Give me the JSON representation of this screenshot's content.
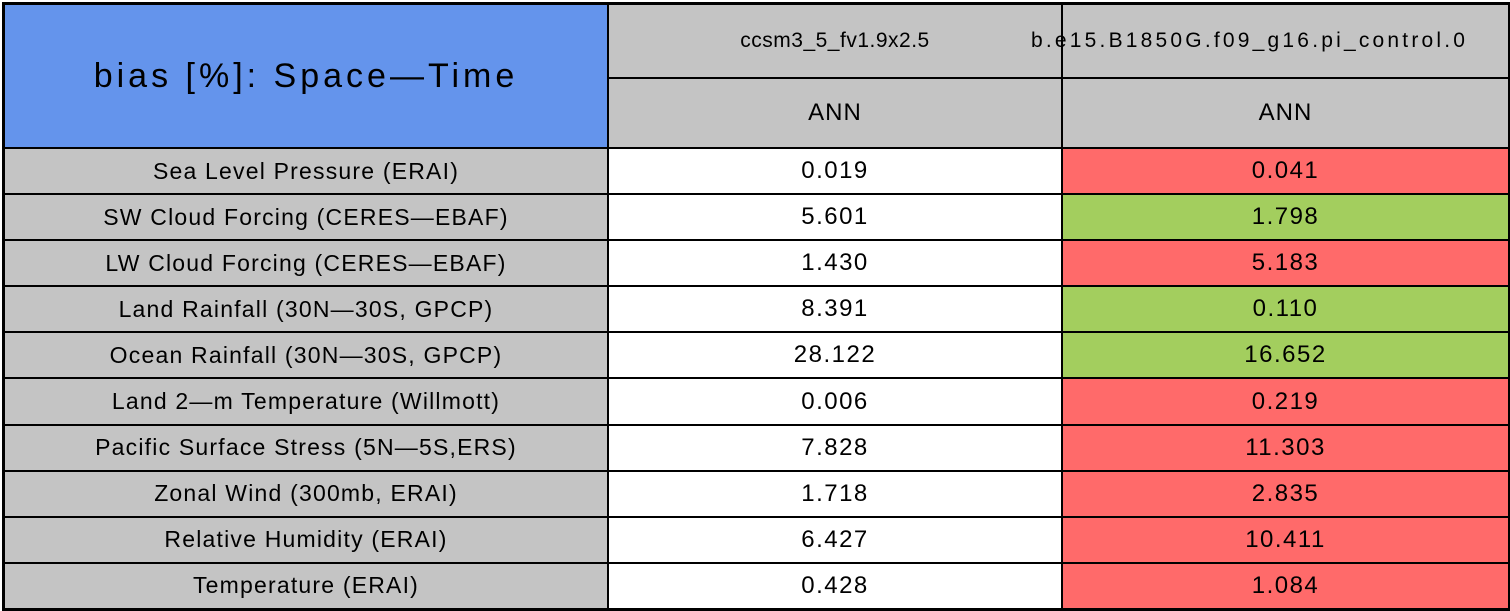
{
  "table": {
    "title": "bias [%]: Space—Time",
    "model_columns": [
      {
        "name": "ccsm3_5_fv1.9x2.5",
        "season": "ANN"
      },
      {
        "name": "b.e15.B1850G.f09_g16.pi_control.0",
        "season": "ANN"
      }
    ],
    "rows": [
      {
        "label": "Sea Level Pressure (ERAI)",
        "cells": [
          {
            "value": "0.019",
            "color": "neutral_white"
          },
          {
            "value": "0.041",
            "color": "flag_red"
          }
        ]
      },
      {
        "label": "SW Cloud Forcing (CERES—EBAF)",
        "cells": [
          {
            "value": "5.601",
            "color": "neutral_white"
          },
          {
            "value": "1.798",
            "color": "flag_green"
          }
        ]
      },
      {
        "label": "LW Cloud Forcing (CERES—EBAF)",
        "cells": [
          {
            "value": "1.430",
            "color": "neutral_white"
          },
          {
            "value": "5.183",
            "color": "flag_red"
          }
        ]
      },
      {
        "label": "Land Rainfall (30N—30S, GPCP)",
        "cells": [
          {
            "value": "8.391",
            "color": "neutral_white"
          },
          {
            "value": "0.110",
            "color": "flag_green"
          }
        ]
      },
      {
        "label": "Ocean Rainfall (30N—30S, GPCP)",
        "cells": [
          {
            "value": "28.122",
            "color": "neutral_white"
          },
          {
            "value": "16.652",
            "color": "flag_green"
          }
        ]
      },
      {
        "label": "Land 2—m Temperature (Willmott)",
        "cells": [
          {
            "value": "0.006",
            "color": "neutral_white"
          },
          {
            "value": "0.219",
            "color": "flag_red"
          }
        ]
      },
      {
        "label": "Pacific Surface Stress (5N—5S,ERS)",
        "cells": [
          {
            "value": "7.828",
            "color": "neutral_white"
          },
          {
            "value": "11.303",
            "color": "flag_red"
          }
        ]
      },
      {
        "label": "Zonal Wind (300mb, ERAI)",
        "cells": [
          {
            "value": "1.718",
            "color": "neutral_white"
          },
          {
            "value": "2.835",
            "color": "flag_red"
          }
        ]
      },
      {
        "label": "Relative Humidity (ERAI)",
        "cells": [
          {
            "value": "6.427",
            "color": "neutral_white"
          },
          {
            "value": "10.411",
            "color": "flag_red"
          }
        ]
      },
      {
        "label": "Temperature (ERAI)",
        "cells": [
          {
            "value": "0.428",
            "color": "neutral_white"
          },
          {
            "value": "1.084",
            "color": "flag_red"
          }
        ]
      }
    ]
  },
  "colors": {
    "header_blue": "#6494EC",
    "cell_gray": "#C4C4C4",
    "flag_red": "#FF6A6A",
    "flag_green": "#A3CE5E",
    "neutral_white": "#FFFFFF",
    "border_black": "#000000"
  },
  "chart_data": {
    "type": "table",
    "title": "bias [%]: Space—Time",
    "columns": [
      {
        "model": "ccsm3_5_fv1.9x2.5",
        "season": "ANN"
      },
      {
        "model": "b.e15.B1850G.f09_g16.pi_control.0",
        "season": "ANN"
      }
    ],
    "row_labels": [
      "Sea Level Pressure (ERAI)",
      "SW Cloud Forcing (CERES—EBAF)",
      "LW Cloud Forcing (CERES—EBAF)",
      "Land Rainfall (30N—30S, GPCP)",
      "Ocean Rainfall (30N—30S, GPCP)",
      "Land 2—m Temperature (Willmott)",
      "Pacific Surface Stress (5N—5S,ERS)",
      "Zonal Wind (300mb, ERAI)",
      "Relative Humidity (ERAI)",
      "Temperature (ERAI)"
    ],
    "values": [
      [
        0.019,
        0.041
      ],
      [
        5.601,
        1.798
      ],
      [
        1.43,
        5.183
      ],
      [
        8.391,
        0.11
      ],
      [
        28.122,
        16.652
      ],
      [
        0.006,
        0.219
      ],
      [
        7.828,
        11.303
      ],
      [
        1.718,
        2.835
      ],
      [
        6.427,
        10.411
      ],
      [
        0.428,
        1.084
      ]
    ],
    "cell_highlight": [
      [
        "none",
        "red"
      ],
      [
        "none",
        "green"
      ],
      [
        "none",
        "red"
      ],
      [
        "none",
        "green"
      ],
      [
        "none",
        "green"
      ],
      [
        "none",
        "red"
      ],
      [
        "none",
        "red"
      ],
      [
        "none",
        "red"
      ],
      [
        "none",
        "red"
      ],
      [
        "none",
        "red"
      ]
    ],
    "legend_note_colors": {
      "red": "#FF6A6A",
      "green": "#A3CE5E",
      "header": "#6494EC",
      "label_bg": "#C4C4C4"
    }
  }
}
